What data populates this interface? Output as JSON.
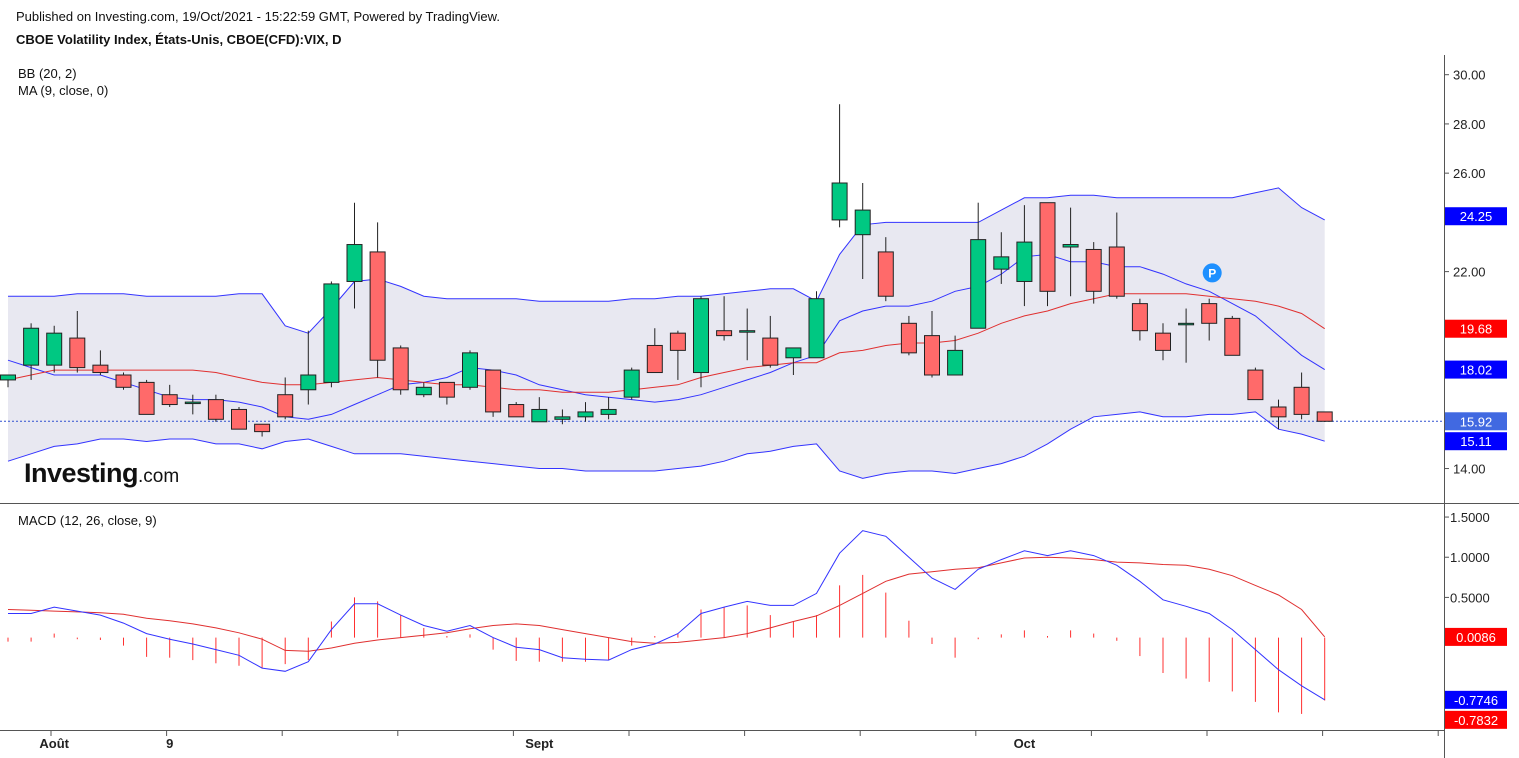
{
  "header": {
    "published": "Published on Investing.com, 19/Oct/2021 - 15:22:59 GMT, Powered by TradingView.",
    "title": "CBOE Volatility Index, États-Unis, CBOE(CFD):VIX, D"
  },
  "logo": {
    "name": "Investing",
    "suffix": ".com"
  },
  "colors": {
    "up": "#00c882",
    "down": "#ff6a6a",
    "bb_band": "#3333ff",
    "bb_fill": "#e5e5f0",
    "ma": "#e03030",
    "macd_line": "#3333ff",
    "signal_line": "#e03030",
    "histogram": "#ff3030",
    "p_badge": "#1e90ff"
  },
  "chart_data": [
    {
      "type": "candlestick",
      "title": "CBOE Volatility Index, États-Unis, CBOE(CFD):VIX, D",
      "x_tick_labels": [
        "Août",
        "9",
        "Sept",
        "Oct"
      ],
      "ylim": [
        12.6,
        30.8
      ],
      "y_ticks": [
        14.0,
        16.0,
        18.0,
        20.0,
        22.0,
        24.0,
        26.0,
        28.0,
        30.0
      ],
      "y_tick_labels": [
        "14.00",
        "",
        "",
        "",
        "22.00",
        "",
        "26.00",
        "28.00",
        "30.00"
      ],
      "indicators": [
        "BB (20, 2)",
        "MA (9, close, 0)"
      ],
      "price_labels": [
        {
          "text": "24.25",
          "value": 24.25,
          "color": "#0000ff"
        },
        {
          "text": "19.68",
          "value": 19.68,
          "color": "#ff0000"
        },
        {
          "text": "18.02",
          "value": 18.02,
          "color": "#0000ff"
        },
        {
          "text": "15.92",
          "value": 15.92,
          "color": "#4169e1"
        },
        {
          "text": "15.11",
          "value": 15.11,
          "color": "#0000ff"
        }
      ],
      "last_price": 15.92,
      "candles": [
        {
          "o": 17.6,
          "h": 17.8,
          "l": 17.3,
          "c": 17.8
        },
        {
          "o": 18.2,
          "h": 19.9,
          "l": 17.6,
          "c": 19.7
        },
        {
          "o": 18.2,
          "h": 19.8,
          "l": 17.9,
          "c": 19.5
        },
        {
          "o": 19.3,
          "h": 20.4,
          "l": 17.9,
          "c": 18.1
        },
        {
          "o": 18.2,
          "h": 18.8,
          "l": 17.8,
          "c": 17.9
        },
        {
          "o": 17.8,
          "h": 17.9,
          "l": 17.2,
          "c": 17.3
        },
        {
          "o": 17.5,
          "h": 17.6,
          "l": 16.2,
          "c": 16.2
        },
        {
          "o": 17.0,
          "h": 17.4,
          "l": 16.5,
          "c": 16.6
        },
        {
          "o": 16.7,
          "h": 17.0,
          "l": 16.2,
          "c": 16.7
        },
        {
          "o": 16.8,
          "h": 17.0,
          "l": 15.9,
          "c": 16.0
        },
        {
          "o": 16.4,
          "h": 16.5,
          "l": 15.6,
          "c": 15.6
        },
        {
          "o": 15.8,
          "h": 15.8,
          "l": 15.3,
          "c": 15.5
        },
        {
          "o": 17.0,
          "h": 17.7,
          "l": 16.0,
          "c": 16.1
        },
        {
          "o": 17.2,
          "h": 19.6,
          "l": 16.6,
          "c": 17.8
        },
        {
          "o": 17.5,
          "h": 21.6,
          "l": 17.3,
          "c": 21.5
        },
        {
          "o": 21.6,
          "h": 24.8,
          "l": 20.5,
          "c": 23.1
        },
        {
          "o": 22.8,
          "h": 24.0,
          "l": 17.7,
          "c": 18.4
        },
        {
          "o": 18.9,
          "h": 19.0,
          "l": 17.0,
          "c": 17.2
        },
        {
          "o": 17.0,
          "h": 17.5,
          "l": 16.9,
          "c": 17.3
        },
        {
          "o": 17.5,
          "h": 17.5,
          "l": 16.6,
          "c": 16.9
        },
        {
          "o": 17.3,
          "h": 18.8,
          "l": 17.2,
          "c": 18.7
        },
        {
          "o": 18.0,
          "h": 18.0,
          "l": 16.1,
          "c": 16.3
        },
        {
          "o": 16.6,
          "h": 16.7,
          "l": 16.1,
          "c": 16.1
        },
        {
          "o": 15.9,
          "h": 16.9,
          "l": 15.9,
          "c": 16.4
        },
        {
          "o": 16.0,
          "h": 16.4,
          "l": 15.8,
          "c": 16.1
        },
        {
          "o": 16.1,
          "h": 16.7,
          "l": 15.9,
          "c": 16.3
        },
        {
          "o": 16.2,
          "h": 16.9,
          "l": 16.0,
          "c": 16.4
        },
        {
          "o": 16.9,
          "h": 18.1,
          "l": 16.8,
          "c": 18.0
        },
        {
          "o": 19.0,
          "h": 19.7,
          "l": 17.9,
          "c": 17.9
        },
        {
          "o": 19.5,
          "h": 19.6,
          "l": 17.6,
          "c": 18.8
        },
        {
          "o": 17.9,
          "h": 21.0,
          "l": 17.3,
          "c": 20.9
        },
        {
          "o": 19.6,
          "h": 21.0,
          "l": 19.2,
          "c": 19.4
        },
        {
          "o": 19.6,
          "h": 20.5,
          "l": 18.4,
          "c": 19.6
        },
        {
          "o": 19.3,
          "h": 20.2,
          "l": 18.1,
          "c": 18.2
        },
        {
          "o": 18.5,
          "h": 18.9,
          "l": 17.8,
          "c": 18.9
        },
        {
          "o": 18.5,
          "h": 21.2,
          "l": 18.5,
          "c": 20.9
        },
        {
          "o": 24.1,
          "h": 28.8,
          "l": 23.8,
          "c": 25.6
        },
        {
          "o": 23.5,
          "h": 25.6,
          "l": 21.7,
          "c": 24.5
        },
        {
          "o": 22.8,
          "h": 23.4,
          "l": 20.8,
          "c": 21.0
        },
        {
          "o": 19.9,
          "h": 20.2,
          "l": 18.6,
          "c": 18.7
        },
        {
          "o": 19.4,
          "h": 20.4,
          "l": 17.7,
          "c": 17.8
        },
        {
          "o": 17.8,
          "h": 19.4,
          "l": 17.8,
          "c": 18.8
        },
        {
          "o": 19.7,
          "h": 24.8,
          "l": 19.7,
          "c": 23.3
        },
        {
          "o": 22.1,
          "h": 23.6,
          "l": 21.5,
          "c": 22.6
        },
        {
          "o": 21.6,
          "h": 24.7,
          "l": 20.6,
          "c": 23.2
        },
        {
          "o": 24.8,
          "h": 24.8,
          "l": 20.6,
          "c": 21.2
        },
        {
          "o": 23.0,
          "h": 24.6,
          "l": 21.0,
          "c": 23.1
        },
        {
          "o": 22.9,
          "h": 23.2,
          "l": 20.7,
          "c": 21.2
        },
        {
          "o": 23.0,
          "h": 24.4,
          "l": 20.9,
          "c": 21.0
        },
        {
          "o": 20.7,
          "h": 20.9,
          "l": 19.2,
          "c": 19.6
        },
        {
          "o": 19.5,
          "h": 19.9,
          "l": 18.4,
          "c": 18.8
        },
        {
          "o": 19.9,
          "h": 20.5,
          "l": 18.3,
          "c": 19.9
        },
        {
          "o": 20.7,
          "h": 20.9,
          "l": 19.2,
          "c": 19.9
        },
        {
          "o": 20.1,
          "h": 20.2,
          "l": 18.6,
          "c": 18.6
        },
        {
          "o": 18.0,
          "h": 18.1,
          "l": 16.8,
          "c": 16.8
        },
        {
          "o": 16.5,
          "h": 16.8,
          "l": 15.6,
          "c": 16.1
        },
        {
          "o": 17.3,
          "h": 17.9,
          "l": 16.0,
          "c": 16.2
        },
        {
          "o": 16.3,
          "h": 16.3,
          "l": 15.9,
          "c": 15.92
        }
      ],
      "series": [
        {
          "name": "BB (20, 2)",
          "upper": [
            21.0,
            21.0,
            21.0,
            21.1,
            21.1,
            21.1,
            21.0,
            21.0,
            21.0,
            21.0,
            21.1,
            21.1,
            19.8,
            19.5,
            20.5,
            21.6,
            21.7,
            21.4,
            21.0,
            20.9,
            20.9,
            20.9,
            20.9,
            20.8,
            20.8,
            20.8,
            20.8,
            20.9,
            20.9,
            21.0,
            21.0,
            21.1,
            21.2,
            21.3,
            21.3,
            20.8,
            22.7,
            23.9,
            24.0,
            24.0,
            24.0,
            24.0,
            24.0,
            24.5,
            25.0,
            25.0,
            25.1,
            25.1,
            25.0,
            25.0,
            25.0,
            25.0,
            25.0,
            25.0,
            25.2,
            25.4,
            24.6,
            24.1
          ],
          "middle": [
            18.4,
            18.1,
            17.8,
            17.8,
            17.8,
            17.5,
            17.2,
            16.9,
            16.8,
            16.8,
            16.7,
            16.5,
            16.1,
            16.0,
            16.2,
            16.6,
            17.0,
            17.4,
            17.5,
            17.7,
            18.1,
            18.0,
            17.8,
            17.4,
            17.2,
            17.0,
            16.9,
            16.8,
            16.7,
            16.8,
            17.0,
            17.3,
            17.6,
            17.9,
            18.3,
            18.6,
            20.0,
            20.4,
            20.6,
            20.6,
            20.8,
            21.2,
            21.4,
            21.9,
            22.6,
            22.7,
            22.4,
            22.4,
            22.2,
            22.2,
            21.9,
            21.5,
            21.2,
            20.7,
            20.2,
            19.4,
            18.6,
            18.02
          ],
          "lower": [
            14.3,
            14.6,
            14.9,
            15.0,
            15.2,
            15.2,
            15.1,
            15.2,
            15.2,
            15.0,
            15.0,
            14.8,
            15.1,
            15.2,
            14.9,
            14.6,
            14.6,
            14.6,
            14.5,
            14.4,
            14.3,
            14.2,
            14.1,
            14.0,
            14.0,
            13.9,
            13.9,
            13.9,
            13.9,
            14.0,
            14.1,
            14.3,
            14.6,
            14.7,
            14.9,
            15.0,
            13.9,
            13.6,
            13.8,
            13.9,
            13.9,
            13.8,
            14.0,
            14.2,
            14.5,
            15.0,
            15.6,
            16.1,
            16.2,
            16.3,
            16.1,
            16.1,
            16.2,
            16.2,
            16.3,
            15.6,
            15.4,
            15.11
          ]
        },
        {
          "name": "MA (9, close, 0)",
          "values": [
            17.6,
            17.8,
            18.0,
            18.0,
            18.0,
            18.0,
            18.0,
            18.0,
            18.0,
            17.9,
            17.7,
            17.5,
            17.4,
            17.4,
            17.5,
            17.6,
            17.7,
            17.6,
            17.5,
            17.4,
            17.4,
            17.3,
            17.2,
            17.2,
            17.1,
            17.1,
            17.1,
            17.2,
            17.3,
            17.4,
            17.7,
            17.9,
            18.1,
            18.2,
            18.3,
            18.3,
            18.7,
            18.8,
            19.0,
            19.1,
            19.1,
            19.2,
            19.5,
            19.9,
            20.2,
            20.4,
            20.7,
            20.9,
            21.1,
            21.1,
            21.1,
            21.1,
            21.0,
            20.9,
            20.8,
            20.6,
            20.3,
            19.68
          ]
        }
      ]
    },
    {
      "type": "line",
      "title": "MACD (12, 26, close, 9)",
      "ylim": [
        -1.15,
        1.65
      ],
      "y_ticks": [
        0.5,
        1.0,
        1.5
      ],
      "y_tick_labels": [
        "0.5000",
        "1.0000",
        "1.5000"
      ],
      "price_labels": [
        {
          "text": "0.0086",
          "value": 0.0086,
          "color": "#ff0000"
        },
        {
          "text": "-0.7746",
          "value": -0.7746,
          "color": "#0000ff"
        },
        {
          "text": "-0.7832",
          "value": -0.7832,
          "color": "#ff0000"
        }
      ],
      "series": [
        {
          "name": "MACD",
          "values": [
            0.3,
            0.3,
            0.38,
            0.33,
            0.28,
            0.18,
            0.05,
            -0.02,
            -0.08,
            -0.15,
            -0.22,
            -0.38,
            -0.42,
            -0.3,
            0.1,
            0.42,
            0.42,
            0.28,
            0.15,
            0.08,
            0.15,
            0.0,
            -0.12,
            -0.15,
            -0.25,
            -0.27,
            -0.28,
            -0.15,
            -0.08,
            0.05,
            0.3,
            0.38,
            0.45,
            0.4,
            0.4,
            0.55,
            1.05,
            1.33,
            1.26,
            1.0,
            0.74,
            0.6,
            0.85,
            0.97,
            1.08,
            1.02,
            1.08,
            1.02,
            0.9,
            0.7,
            0.47,
            0.39,
            0.3,
            0.1,
            -0.15,
            -0.4,
            -0.6,
            -0.7746
          ]
        },
        {
          "name": "Signal",
          "values": [
            0.35,
            0.34,
            0.33,
            0.32,
            0.31,
            0.29,
            0.24,
            0.21,
            0.17,
            0.12,
            0.06,
            -0.02,
            -0.16,
            -0.17,
            -0.13,
            -0.07,
            -0.03,
            0.0,
            0.03,
            0.06,
            0.11,
            0.15,
            0.17,
            0.15,
            0.1,
            0.05,
            0.0,
            -0.05,
            -0.07,
            -0.06,
            -0.03,
            0.0,
            0.05,
            0.12,
            0.2,
            0.27,
            0.4,
            0.55,
            0.7,
            0.79,
            0.82,
            0.85,
            0.87,
            0.93,
            0.99,
            1.0,
            0.99,
            0.97,
            0.94,
            0.93,
            0.91,
            0.9,
            0.85,
            0.77,
            0.65,
            0.53,
            0.35,
            0.0086
          ]
        },
        {
          "name": "Histogram",
          "values": [
            -0.05,
            -0.05,
            0.05,
            -0.02,
            -0.03,
            -0.1,
            -0.24,
            -0.25,
            -0.28,
            -0.32,
            -0.35,
            -0.38,
            -0.33,
            -0.28,
            0.2,
            0.5,
            0.45,
            0.28,
            0.12,
            0.02,
            0.04,
            -0.15,
            -0.29,
            -0.3,
            -0.3,
            -0.3,
            -0.28,
            -0.1,
            0.02,
            0.05,
            0.35,
            0.38,
            0.4,
            0.28,
            0.2,
            0.28,
            0.65,
            0.78,
            0.56,
            0.21,
            -0.08,
            -0.25,
            -0.02,
            0.04,
            0.09,
            0.02,
            0.09,
            0.05,
            -0.04,
            -0.23,
            -0.44,
            -0.51,
            -0.55,
            -0.67,
            -0.8,
            -0.93,
            -0.95,
            -0.7832
          ]
        }
      ]
    }
  ]
}
